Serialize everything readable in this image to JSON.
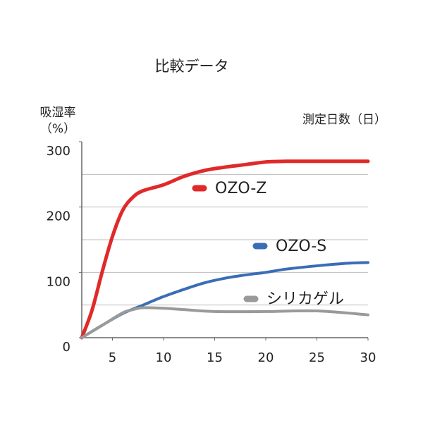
{
  "chart_data": {
    "type": "line",
    "title": "比較データ",
    "ylabel": "吸湿率",
    "yunit": "（%）",
    "xlabel": "測定日数（日）",
    "xlim": [
      2,
      30
    ],
    "xticks": [
      5,
      10,
      15,
      20,
      25,
      30
    ],
    "ylim": [
      0,
      300
    ],
    "yticks": [
      0,
      100,
      200,
      300
    ],
    "ygrid": [
      50,
      100,
      150,
      200,
      250
    ],
    "grid": true,
    "series": [
      {
        "name": "OZO-Z",
        "color": "#e02a2a",
        "x": [
          2,
          3,
          4,
          5,
          6,
          7,
          8,
          10,
          12,
          14,
          16,
          18,
          20,
          22,
          25,
          30
        ],
        "values": [
          0,
          42,
          101,
          155,
          195,
          215,
          225,
          234,
          247,
          256,
          261,
          265,
          269,
          270,
          270,
          270
        ]
      },
      {
        "name": "OZO-S",
        "color": "#3a6db5",
        "x": [
          2,
          4,
          6,
          8,
          10,
          12,
          14,
          16,
          18,
          20,
          22,
          25,
          28,
          30
        ],
        "values": [
          0,
          19,
          37,
          50,
          63,
          74,
          84,
          91,
          96,
          100,
          105,
          110,
          114,
          115
        ]
      },
      {
        "name": "シリカゲル",
        "color": "#9a9a9a",
        "x": [
          2,
          4,
          6,
          7,
          8,
          10,
          12,
          15,
          20,
          25,
          30
        ],
        "values": [
          0,
          19,
          38,
          43,
          46,
          45,
          43,
          40,
          40,
          41,
          35
        ]
      }
    ]
  }
}
